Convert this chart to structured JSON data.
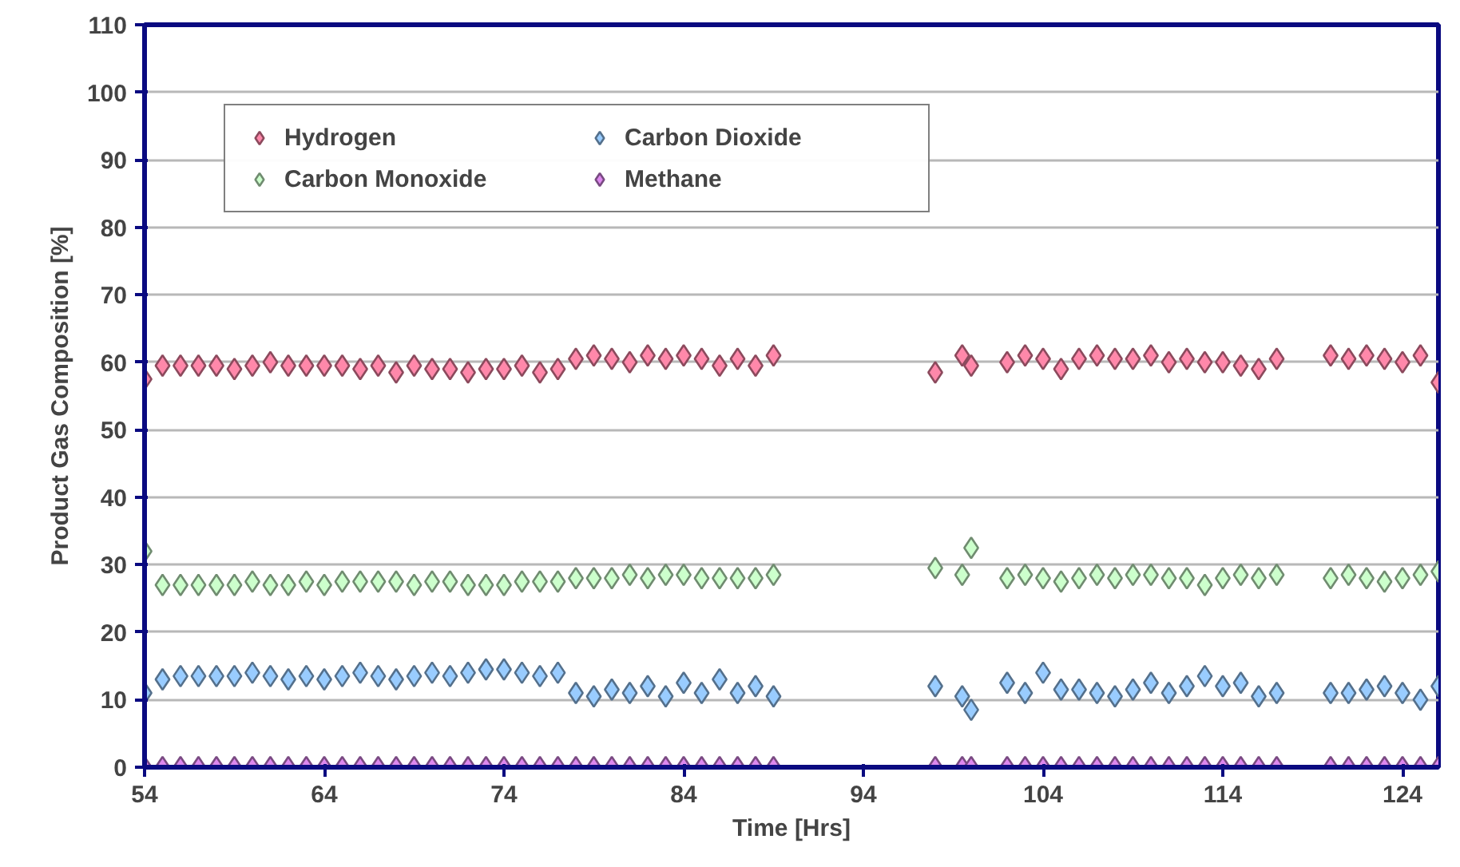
{
  "chart_data": {
    "type": "scatter",
    "xlabel": "Time [Hrs]",
    "ylabel": "Product Gas Composition [%]",
    "x": [
      54,
      55,
      56,
      57,
      58,
      59,
      60,
      61,
      62,
      63,
      64,
      65,
      66,
      67,
      68,
      69,
      70,
      71,
      72,
      73,
      74,
      75,
      76,
      77,
      78,
      79,
      80,
      81,
      82,
      83,
      84,
      85,
      86,
      87,
      88,
      89,
      98,
      99.5,
      100,
      102,
      103,
      104,
      105,
      106,
      107,
      108,
      109,
      110,
      111,
      112,
      113,
      114,
      115,
      116,
      117,
      120,
      121,
      122,
      123,
      124,
      125,
      126
    ],
    "series": [
      {
        "name": "Hydrogen",
        "color": "#ff88aa",
        "values": [
          57.5,
          59.5,
          59.5,
          59.5,
          59.5,
          59,
          59.5,
          60,
          59.5,
          59.5,
          59.5,
          59.5,
          59,
          59.5,
          58.5,
          59.5,
          59,
          59,
          58.5,
          59,
          59,
          59.5,
          58.5,
          59,
          60.5,
          61,
          60.5,
          60,
          61,
          60.5,
          61,
          60.5,
          59.5,
          60.5,
          59.5,
          61,
          58.5,
          61,
          59.5,
          60,
          61,
          60.5,
          59,
          60.5,
          61,
          60.5,
          60.5,
          61,
          60,
          60.5,
          60,
          60,
          59.5,
          59,
          60.5,
          61,
          60.5,
          61,
          60.5,
          60,
          61,
          57
        ]
      },
      {
        "name": "Carbon Monoxide",
        "color": "#ccffcc",
        "values": [
          32,
          27,
          27,
          27,
          27,
          27,
          27.5,
          27,
          27,
          27.5,
          27,
          27.5,
          27.5,
          27.5,
          27.5,
          27,
          27.5,
          27.5,
          27,
          27,
          27,
          27.5,
          27.5,
          27.5,
          28,
          28,
          28,
          28.5,
          28,
          28.5,
          28.5,
          28,
          28,
          28,
          28,
          28.5,
          29.5,
          28.5,
          32.5,
          28,
          28.5,
          28,
          27.5,
          28,
          28.5,
          28,
          28.5,
          28.5,
          28,
          28,
          27,
          28,
          28.5,
          28,
          28.5,
          28,
          28.5,
          28,
          27.5,
          28,
          28.5,
          29
        ]
      },
      {
        "name": "Carbon Dioxide",
        "color": "#99ccff",
        "values": [
          11,
          13,
          13.5,
          13.5,
          13.5,
          13.5,
          14,
          13.5,
          13,
          13.5,
          13,
          13.5,
          14,
          13.5,
          13,
          13.5,
          14,
          13.5,
          14,
          14.5,
          14.5,
          14,
          13.5,
          14,
          11,
          10.5,
          11.5,
          11,
          12,
          10.5,
          12.5,
          11,
          13,
          11,
          12,
          10.5,
          12,
          10.5,
          8.5,
          12.5,
          11,
          14,
          11.5,
          11.5,
          11,
          10.5,
          11.5,
          12.5,
          11,
          12,
          13.5,
          12,
          12.5,
          10.5,
          11,
          11,
          11,
          11.5,
          12,
          11,
          10,
          12
        ]
      },
      {
        "name": "Methane",
        "color": "#dd88ee",
        "values": [
          0,
          0,
          0,
          0,
          0,
          0,
          0,
          0,
          0,
          0,
          0,
          0,
          0,
          0,
          0,
          0,
          0,
          0,
          0,
          0,
          0,
          0,
          0,
          0,
          0,
          0,
          0,
          0,
          0,
          0,
          0,
          0,
          0,
          0,
          0,
          0,
          0,
          0,
          0,
          0,
          0,
          0,
          0,
          0,
          0,
          0,
          0,
          0,
          0,
          0,
          0,
          0,
          0,
          0,
          0,
          0,
          0,
          0,
          0,
          0,
          0,
          0
        ]
      }
    ],
    "marker": "diamond",
    "legend": "top left",
    "grid": "y",
    "xlim": [
      54,
      126
    ],
    "xticks": [
      54,
      64,
      74,
      84,
      94,
      104,
      114,
      124
    ],
    "ylim": [
      0,
      110
    ],
    "yticks": [
      0,
      10,
      20,
      30,
      40,
      50,
      60,
      70,
      80,
      90,
      100,
      110
    ]
  }
}
